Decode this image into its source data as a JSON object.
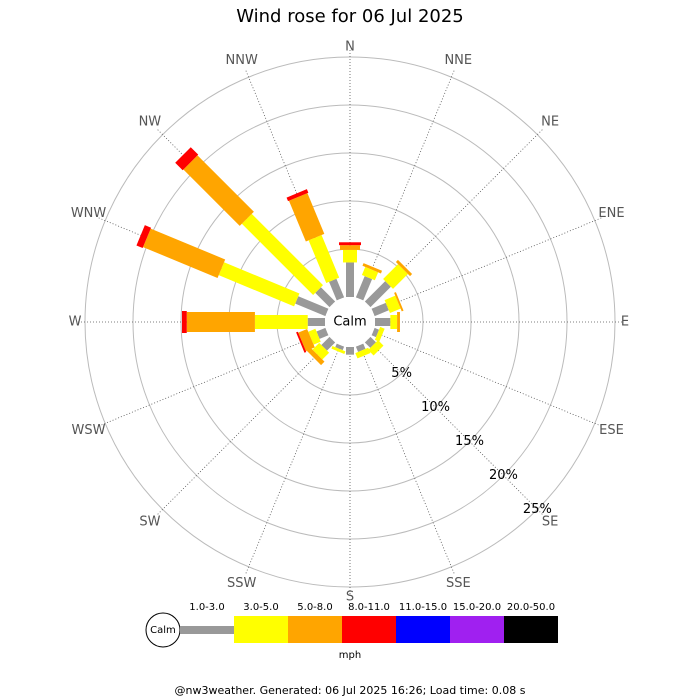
{
  "chart_data": {
    "type": "windrose",
    "title": "Wind rose for 06 Jul 2025",
    "directions": [
      "N",
      "NNE",
      "NE",
      "ENE",
      "E",
      "ESE",
      "SE",
      "SSE",
      "S",
      "SSW",
      "SW",
      "WSW",
      "W",
      "WNW",
      "NW",
      "NNW"
    ],
    "calm_label": "Calm",
    "rlim": [
      0,
      25
    ],
    "rticks": [
      {
        "value": 5,
        "label": "5%"
      },
      {
        "value": 10,
        "label": "10%"
      },
      {
        "value": 15,
        "label": "15%"
      },
      {
        "value": 20,
        "label": "20%"
      },
      {
        "value": 25,
        "label": "25%"
      }
    ],
    "series": [
      {
        "name": "1.0-3.0",
        "color": "#999999",
        "values": [
          3.6,
          2.4,
          3.0,
          1.6,
          1.6,
          0.5,
          0.8,
          0.6,
          0.8,
          0.4,
          1.2,
          1.0,
          1.8,
          3.4,
          2.1,
          2.1
        ]
      },
      {
        "name": "3.0-5.0",
        "color": "#ffff00",
        "values": [
          1.3,
          0.9,
          2.2,
          1.2,
          0.7,
          0.5,
          0.8,
          0.6,
          0,
          0.3,
          1.0,
          0.8,
          5.5,
          8.5,
          10.5,
          4.8
        ]
      },
      {
        "name": "5.0-8.0",
        "color": "#ffa500",
        "values": [
          0.5,
          0.3,
          0.3,
          0.2,
          0.3,
          0,
          0,
          0,
          0,
          0,
          0.5,
          1.0,
          7.1,
          8.4,
          8.3,
          4.6
        ]
      },
      {
        "name": "8.0-11.0",
        "color": "#ff0000",
        "values": [
          0.3,
          0,
          0,
          0,
          0,
          0,
          0,
          0,
          0,
          0,
          0,
          0.2,
          0.5,
          0.7,
          1.1,
          0.4
        ]
      },
      {
        "name": "11.0-15.0",
        "color": "#0000ff",
        "values": [
          0,
          0,
          0,
          0,
          0,
          0,
          0,
          0,
          0,
          0,
          0,
          0,
          0,
          0,
          0,
          0
        ]
      },
      {
        "name": "15.0-20.0",
        "color": "#a020f0",
        "values": [
          0,
          0,
          0,
          0,
          0,
          0,
          0,
          0,
          0,
          0,
          0,
          0,
          0,
          0,
          0,
          0
        ]
      },
      {
        "name": "20.0-50.0",
        "color": "#000000",
        "values": [
          0,
          0,
          0,
          0,
          0,
          0,
          0,
          0,
          0,
          0,
          0,
          0,
          0,
          0,
          0,
          0
        ]
      }
    ],
    "unit": "mph",
    "footer": "@nw3weather.  Generated: 06 Jul 2025 16:26; Load time: 0.08 s"
  }
}
